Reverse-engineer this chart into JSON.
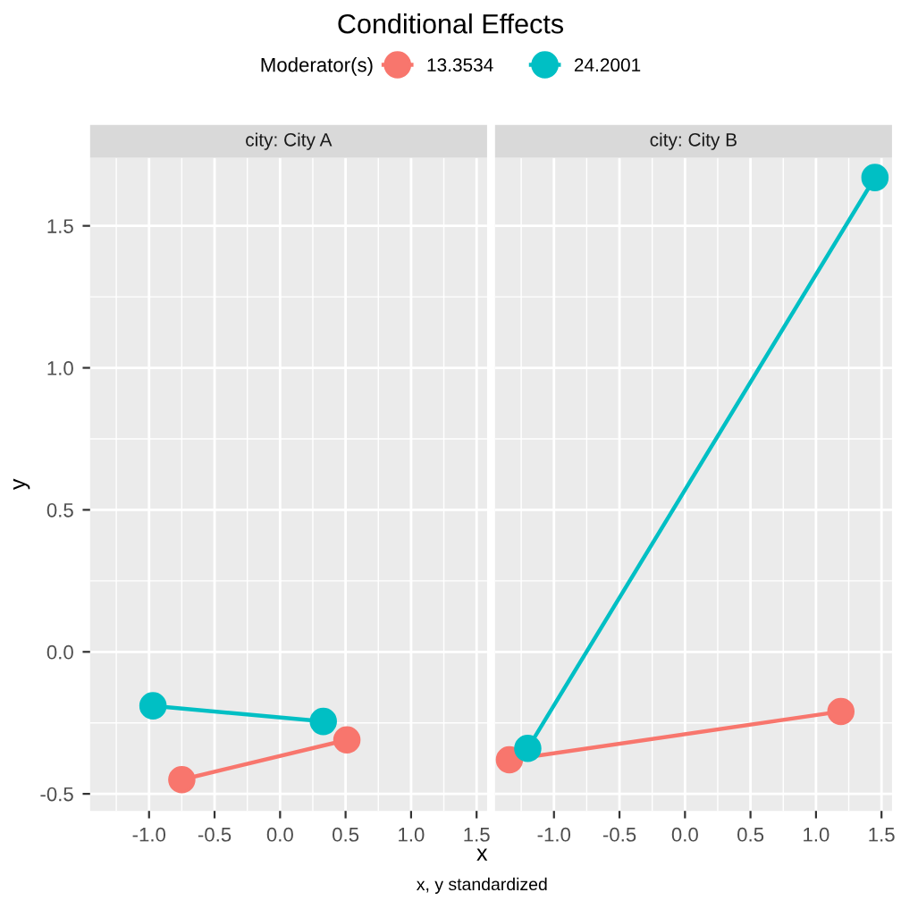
{
  "chart_data": [
    {
      "type": "line",
      "title": "Conditional Effects",
      "subtitle": "city: City A",
      "xlabel": "x",
      "ylabel": "y",
      "legend_title": "Moderator(s)",
      "annotations": [
        "x, y standardized"
      ],
      "legend": "top",
      "grid": true,
      "marker": "circle",
      "line_style": "solid",
      "xlim": [
        -1.45,
        1.58
      ],
      "xticks": [
        {
          "value": -1,
          "label": "-1.0"
        },
        -0.5,
        {
          "value": 0,
          "label": "0.0"
        },
        0.5,
        {
          "value": 1,
          "label": "1.0"
        },
        1.5
      ],
      "ylim": [
        -0.56,
        1.74
      ],
      "yticks": [
        -0.5,
        {
          "value": 0,
          "label": "0.0"
        },
        0.5,
        {
          "value": 1,
          "label": "1.0"
        },
        1.5
      ],
      "series": [
        {
          "name": "13.3534",
          "color": "#f8766d",
          "x": [
            -0.75,
            0.51
          ],
          "values": [
            -0.45,
            -0.31
          ]
        },
        {
          "name": "24.2001",
          "color": "#00bfc4",
          "x": [
            -0.97,
            0.33
          ],
          "values": [
            -0.19,
            -0.245
          ]
        }
      ]
    },
    {
      "type": "line",
      "subtitle": "city: City B",
      "grid": true,
      "marker": "circle",
      "line_style": "solid",
      "tick_labels": "x",
      "xlim": [
        -1.45,
        1.58
      ],
      "xticks": [
        {
          "value": -1,
          "label": "-1.0"
        },
        -0.5,
        {
          "value": 0,
          "label": "0.0"
        },
        0.5,
        {
          "value": 1,
          "label": "1.0"
        },
        1.5
      ],
      "ylim": [
        -0.56,
        1.74
      ],
      "yticks": [
        -0.5,
        0,
        0.5,
        1,
        1.5
      ],
      "series": [
        {
          "name": "13.3534",
          "color": "#f8766d",
          "x": [
            -1.34,
            1.19
          ],
          "values": [
            -0.38,
            -0.21
          ]
        },
        {
          "name": "24.2001",
          "color": "#00bfc4",
          "x": [
            -1.2,
            1.45
          ],
          "values": [
            -0.34,
            1.67
          ]
        }
      ]
    }
  ]
}
